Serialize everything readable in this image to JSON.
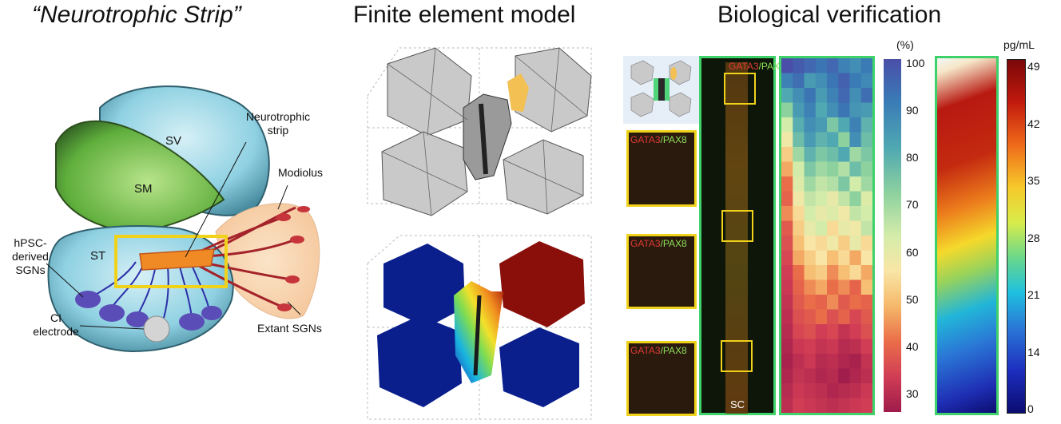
{
  "titles": {
    "left": "“Neurotrophic Strip”",
    "middle": "Finite element model",
    "right": "Biological verification"
  },
  "anatomy_labels": {
    "sv": "SV",
    "sm": "SM",
    "st": "ST",
    "neurotrophic_strip": "Neurotrophic\nstrip",
    "modiolus": "Modiolus",
    "hpsc": "hPSC-\nderived\nSGNs",
    "ci_electrode": "CI\nelectrode",
    "extant_sgns": "Extant SGNs"
  },
  "microscopy": {
    "stain_a": "GATA3",
    "stain_sep": "/",
    "stain_b": "PAX8",
    "sc_label": "SC"
  },
  "colorbar_percent": {
    "unit": "(%)",
    "ticks": [
      "100",
      "90",
      "80",
      "70",
      "60",
      "50",
      "40",
      "30"
    ]
  },
  "colorbar_conc": {
    "unit": "pg/mL",
    "ticks": [
      "49",
      "42",
      "35",
      "28",
      "21",
      "14",
      "0"
    ]
  },
  "colors": {
    "yellow_box": "#f1d21b",
    "green_frame": "#3fd26b",
    "fem_gray": "#c9c9c9",
    "fem_blue": "#0a1f8c",
    "fem_red": "#8a0f0a"
  },
  "heatmap_cells": [
    [
      100,
      98,
      96,
      94,
      96,
      92,
      90,
      93
    ],
    [
      92,
      95,
      88,
      90,
      94,
      97,
      93,
      91
    ],
    [
      86,
      90,
      94,
      88,
      92,
      96,
      90,
      95
    ],
    [
      78,
      88,
      92,
      86,
      90,
      94,
      89,
      88
    ],
    [
      70,
      85,
      90,
      88,
      80,
      86,
      92,
      84
    ],
    [
      64,
      82,
      88,
      84,
      86,
      78,
      90,
      82
    ],
    [
      58,
      76,
      84,
      80,
      82,
      86,
      76,
      80
    ],
    [
      54,
      70,
      80,
      76,
      78,
      74,
      82,
      78
    ],
    [
      50,
      68,
      76,
      72,
      74,
      80,
      70,
      76
    ],
    [
      48,
      64,
      72,
      70,
      66,
      72,
      78,
      68
    ],
    [
      52,
      60,
      70,
      66,
      68,
      64,
      72,
      70
    ],
    [
      46,
      58,
      66,
      70,
      60,
      66,
      64,
      72
    ],
    [
      44,
      56,
      62,
      60,
      64,
      58,
      66,
      60
    ],
    [
      42,
      54,
      58,
      62,
      56,
      60,
      54,
      62
    ],
    [
      40,
      50,
      56,
      58,
      52,
      56,
      60,
      54
    ],
    [
      38,
      48,
      52,
      54,
      50,
      52,
      48,
      56
    ],
    [
      36,
      46,
      50,
      48,
      52,
      46,
      50,
      48
    ],
    [
      34,
      44,
      46,
      50,
      44,
      48,
      42,
      46
    ],
    [
      32,
      42,
      44,
      40,
      42,
      36,
      40,
      44
    ],
    [
      30,
      38,
      40,
      36,
      38,
      32,
      34,
      40
    ],
    [
      28,
      34,
      38,
      32,
      34,
      30,
      28,
      36
    ],
    [
      30,
      36,
      34,
      30,
      32,
      26,
      30,
      34
    ],
    [
      32,
      38,
      36,
      34,
      30,
      32,
      34,
      38
    ],
    [
      34,
      40,
      38,
      36,
      34,
      36,
      38,
      40
    ]
  ]
}
